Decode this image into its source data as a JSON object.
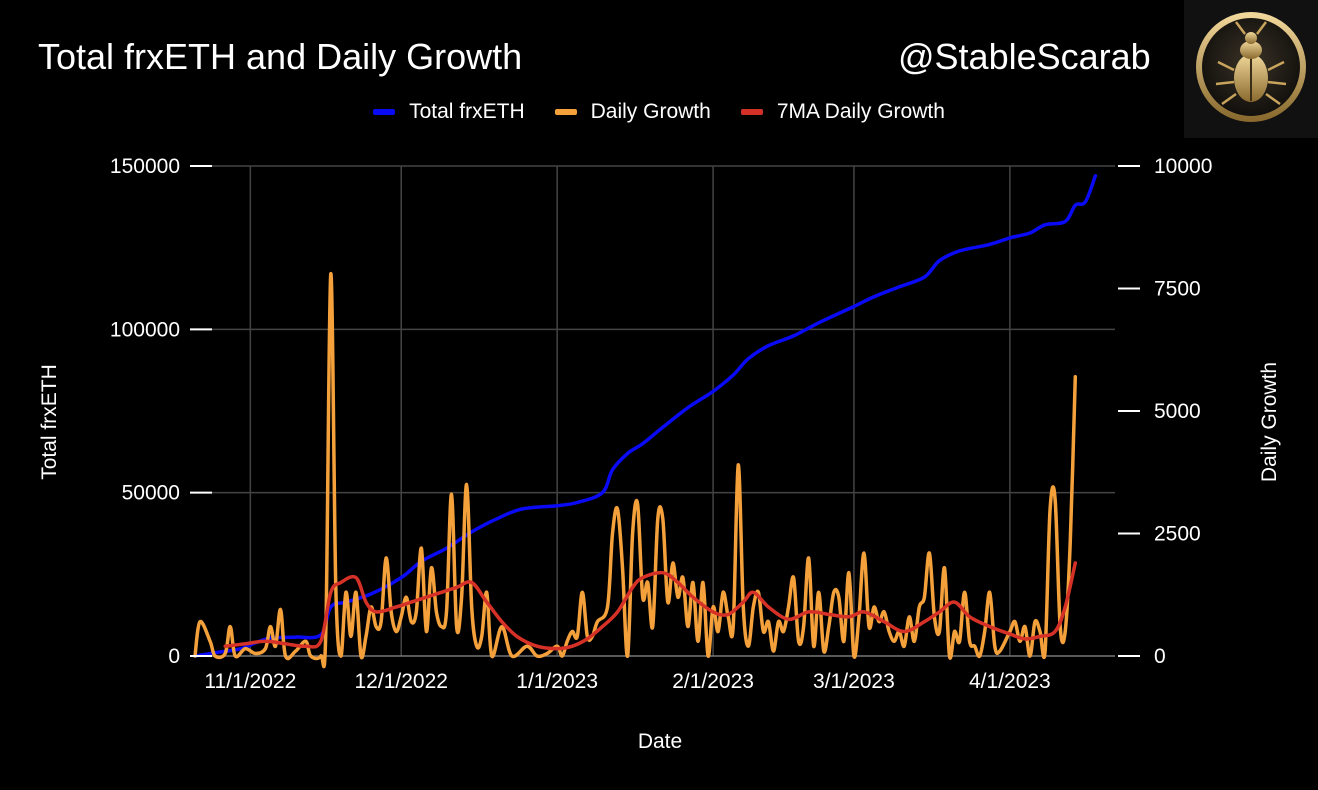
{
  "header": {
    "title": "Total frxETH and Daily Growth",
    "handle": "@StableScarab",
    "logo_icon": "scarab-beetle-logo"
  },
  "colors": {
    "background": "#000000",
    "total": "#0a0af5",
    "daily": "#f4a13c",
    "ma": "#d63127",
    "grid": "#444444",
    "logo_gold": "#c9a45c"
  },
  "chart_data": {
    "type": "line",
    "title": "Total frxETH and Daily Growth",
    "xlabel": "Date",
    "ylabel_left": "Total frxETH",
    "ylabel_right": "Daily Growth",
    "xlim": [
      "2022-10-21",
      "2023-04-10"
    ],
    "ylim_left": [
      0,
      150000
    ],
    "ylim_right": [
      0,
      10000
    ],
    "yticks_left": [
      0,
      50000,
      100000,
      150000
    ],
    "yticks_right": [
      0,
      2500,
      5000,
      7500,
      10000
    ],
    "xticks": [
      {
        "date": "2022-11-01",
        "label": "11/1/2022"
      },
      {
        "date": "2022-12-01",
        "label": "12/1/2022"
      },
      {
        "date": "2023-01-01",
        "label": "1/1/2023"
      },
      {
        "date": "2023-02-01",
        "label": "2/1/2023"
      },
      {
        "date": "2023-03-01",
        "label": "3/1/2023"
      },
      {
        "date": "2023-04-01",
        "label": "4/1/2023"
      }
    ],
    "grid": true,
    "legend_position": "top-center",
    "series": [
      {
        "name": "Total frxETH",
        "axis": "left",
        "color": "#0a0af5",
        "points": [
          [
            "2022-10-21",
            0
          ],
          [
            "2022-10-25",
            1000
          ],
          [
            "2022-10-30",
            2200
          ],
          [
            "2022-11-02",
            4000
          ],
          [
            "2022-11-05",
            5500
          ],
          [
            "2022-11-10",
            5800
          ],
          [
            "2022-11-15",
            6500
          ],
          [
            "2022-11-17",
            15000
          ],
          [
            "2022-11-20",
            16500
          ],
          [
            "2022-11-25",
            19000
          ],
          [
            "2022-12-01",
            24000
          ],
          [
            "2022-12-05",
            29000
          ],
          [
            "2022-12-10",
            33000
          ],
          [
            "2022-12-15",
            38000
          ],
          [
            "2022-12-20",
            42000
          ],
          [
            "2022-12-25",
            45000
          ],
          [
            "2023-01-01",
            46000
          ],
          [
            "2023-01-05",
            47000
          ],
          [
            "2023-01-10",
            50000
          ],
          [
            "2023-01-12",
            57000
          ],
          [
            "2023-01-15",
            62000
          ],
          [
            "2023-01-18",
            65000
          ],
          [
            "2023-01-22",
            70000
          ],
          [
            "2023-01-27",
            76000
          ],
          [
            "2023-02-01",
            81000
          ],
          [
            "2023-02-05",
            86000
          ],
          [
            "2023-02-08",
            91000
          ],
          [
            "2023-02-12",
            95000
          ],
          [
            "2023-02-17",
            98000
          ],
          [
            "2023-02-22",
            102000
          ],
          [
            "2023-03-01",
            107000
          ],
          [
            "2023-03-05",
            110000
          ],
          [
            "2023-03-10",
            113000
          ],
          [
            "2023-03-15",
            116000
          ],
          [
            "2023-03-18",
            121000
          ],
          [
            "2023-03-22",
            124000
          ],
          [
            "2023-03-28",
            126000
          ],
          [
            "2023-04-01",
            128000
          ],
          [
            "2023-04-05",
            129500
          ],
          [
            "2023-04-08",
            132000
          ],
          [
            "2023-04-12",
            133000
          ],
          [
            "2023-04-14",
            138000
          ],
          [
            "2023-04-16",
            139000
          ],
          [
            "2023-04-18",
            147000
          ]
        ]
      },
      {
        "name": "Daily Growth",
        "axis": "right",
        "color": "#f4a13c",
        "points": [
          [
            "2022-10-21",
            0
          ],
          [
            "2022-10-22",
            700
          ],
          [
            "2022-10-24",
            300
          ],
          [
            "2022-10-25",
            0
          ],
          [
            "2022-10-27",
            50
          ],
          [
            "2022-10-28",
            600
          ],
          [
            "2022-10-29",
            0
          ],
          [
            "2022-10-31",
            150
          ],
          [
            "2022-11-02",
            50
          ],
          [
            "2022-11-04",
            150
          ],
          [
            "2022-11-05",
            600
          ],
          [
            "2022-11-06",
            200
          ],
          [
            "2022-11-07",
            950
          ],
          [
            "2022-11-08",
            0
          ],
          [
            "2022-11-10",
            100
          ],
          [
            "2022-11-12",
            300
          ],
          [
            "2022-11-13",
            0
          ],
          [
            "2022-11-15",
            0
          ],
          [
            "2022-11-16",
            500
          ],
          [
            "2022-11-17",
            7800
          ],
          [
            "2022-11-18",
            1400
          ],
          [
            "2022-11-19",
            0
          ],
          [
            "2022-11-20",
            1300
          ],
          [
            "2022-11-21",
            400
          ],
          [
            "2022-11-22",
            1300
          ],
          [
            "2022-11-23",
            0
          ],
          [
            "2022-11-24",
            400
          ],
          [
            "2022-11-25",
            1000
          ],
          [
            "2022-11-26",
            600
          ],
          [
            "2022-11-27",
            700
          ],
          [
            "2022-11-28",
            2000
          ],
          [
            "2022-11-29",
            900
          ],
          [
            "2022-11-30",
            500
          ],
          [
            "2022-12-01",
            800
          ],
          [
            "2022-12-02",
            1200
          ],
          [
            "2022-12-03",
            700
          ],
          [
            "2022-12-04",
            900
          ],
          [
            "2022-12-05",
            2200
          ],
          [
            "2022-12-06",
            500
          ],
          [
            "2022-12-07",
            1800
          ],
          [
            "2022-12-08",
            900
          ],
          [
            "2022-12-09",
            600
          ],
          [
            "2022-12-10",
            900
          ],
          [
            "2022-12-11",
            3300
          ],
          [
            "2022-12-12",
            600
          ],
          [
            "2022-12-13",
            1200
          ],
          [
            "2022-12-14",
            3500
          ],
          [
            "2022-12-15",
            1000
          ],
          [
            "2022-12-16",
            200
          ],
          [
            "2022-12-17",
            400
          ],
          [
            "2022-12-18",
            1300
          ],
          [
            "2022-12-19",
            0
          ],
          [
            "2022-12-21",
            600
          ],
          [
            "2022-12-23",
            0
          ],
          [
            "2022-12-26",
            200
          ],
          [
            "2022-12-28",
            0
          ],
          [
            "2022-12-30",
            50
          ],
          [
            "2023-01-01",
            200
          ],
          [
            "2023-01-02",
            0
          ],
          [
            "2023-01-03",
            300
          ],
          [
            "2023-01-04",
            500
          ],
          [
            "2023-01-05",
            400
          ],
          [
            "2023-01-06",
            1300
          ],
          [
            "2023-01-07",
            400
          ],
          [
            "2023-01-08",
            400
          ],
          [
            "2023-01-09",
            700
          ],
          [
            "2023-01-11",
            1000
          ],
          [
            "2023-01-12",
            2500
          ],
          [
            "2023-01-13",
            3000
          ],
          [
            "2023-01-14",
            1800
          ],
          [
            "2023-01-15",
            0
          ],
          [
            "2023-01-16",
            2500
          ],
          [
            "2023-01-17",
            3100
          ],
          [
            "2023-01-18",
            1200
          ],
          [
            "2023-01-19",
            1500
          ],
          [
            "2023-01-20",
            600
          ],
          [
            "2023-01-21",
            2800
          ],
          [
            "2023-01-22",
            2800
          ],
          [
            "2023-01-23",
            1100
          ],
          [
            "2023-01-24",
            1900
          ],
          [
            "2023-01-25",
            1200
          ],
          [
            "2023-01-26",
            1600
          ],
          [
            "2023-01-27",
            600
          ],
          [
            "2023-01-28",
            1500
          ],
          [
            "2023-01-29",
            300
          ],
          [
            "2023-01-30",
            1500
          ],
          [
            "2023-01-31",
            0
          ],
          [
            "2023-02-01",
            1000
          ],
          [
            "2023-02-02",
            500
          ],
          [
            "2023-02-03",
            1300
          ],
          [
            "2023-02-04",
            800
          ],
          [
            "2023-02-05",
            600
          ],
          [
            "2023-02-06",
            3900
          ],
          [
            "2023-02-07",
            1000
          ],
          [
            "2023-02-08",
            200
          ],
          [
            "2023-02-09",
            1000
          ],
          [
            "2023-02-10",
            1300
          ],
          [
            "2023-02-11",
            500
          ],
          [
            "2023-02-12",
            700
          ],
          [
            "2023-02-13",
            100
          ],
          [
            "2023-02-14",
            700
          ],
          [
            "2023-02-15",
            500
          ],
          [
            "2023-02-16",
            1000
          ],
          [
            "2023-02-17",
            1600
          ],
          [
            "2023-02-18",
            300
          ],
          [
            "2023-02-19",
            600
          ],
          [
            "2023-02-20",
            2000
          ],
          [
            "2023-02-21",
            200
          ],
          [
            "2023-02-22",
            1300
          ],
          [
            "2023-02-23",
            100
          ],
          [
            "2023-02-24",
            600
          ],
          [
            "2023-02-25",
            1300
          ],
          [
            "2023-02-26",
            1200
          ],
          [
            "2023-02-27",
            300
          ],
          [
            "2023-02-28",
            1700
          ],
          [
            "2023-03-01",
            0
          ],
          [
            "2023-03-02",
            800
          ],
          [
            "2023-03-03",
            2100
          ],
          [
            "2023-03-04",
            600
          ],
          [
            "2023-03-05",
            1000
          ],
          [
            "2023-03-06",
            700
          ],
          [
            "2023-03-07",
            900
          ],
          [
            "2023-03-08",
            500
          ],
          [
            "2023-03-09",
            300
          ],
          [
            "2023-03-10",
            500
          ],
          [
            "2023-03-11",
            200
          ],
          [
            "2023-03-12",
            800
          ],
          [
            "2023-03-13",
            300
          ],
          [
            "2023-03-14",
            1000
          ],
          [
            "2023-03-15",
            1200
          ],
          [
            "2023-03-16",
            2100
          ],
          [
            "2023-03-17",
            800
          ],
          [
            "2023-03-18",
            500
          ],
          [
            "2023-03-19",
            1800
          ],
          [
            "2023-03-20",
            0
          ],
          [
            "2023-03-21",
            500
          ],
          [
            "2023-03-22",
            300
          ],
          [
            "2023-03-23",
            1300
          ],
          [
            "2023-03-24",
            300
          ],
          [
            "2023-03-25",
            200
          ],
          [
            "2023-03-26",
            0
          ],
          [
            "2023-03-27",
            500
          ],
          [
            "2023-03-28",
            1300
          ],
          [
            "2023-03-29",
            200
          ],
          [
            "2023-03-30",
            100
          ],
          [
            "2023-04-01",
            500
          ],
          [
            "2023-04-02",
            700
          ],
          [
            "2023-04-03",
            300
          ],
          [
            "2023-04-04",
            600
          ],
          [
            "2023-04-05",
            0
          ],
          [
            "2023-04-06",
            700
          ],
          [
            "2023-04-07",
            500
          ],
          [
            "2023-04-08",
            100
          ],
          [
            "2023-04-09",
            3000
          ],
          [
            "2023-04-10",
            3200
          ],
          [
            "2023-04-11",
            600
          ],
          [
            "2023-04-12",
            500
          ],
          [
            "2023-04-13",
            2300
          ],
          [
            "2023-04-14",
            5700
          ]
        ]
      },
      {
        "name": "7MA Daily Growth",
        "axis": "right",
        "color": "#d63127",
        "points": [
          [
            "2022-10-27",
            200
          ],
          [
            "2022-10-31",
            250
          ],
          [
            "2022-11-04",
            300
          ],
          [
            "2022-11-08",
            250
          ],
          [
            "2022-11-12",
            200
          ],
          [
            "2022-11-15",
            300
          ],
          [
            "2022-11-17",
            1300
          ],
          [
            "2022-11-19",
            1500
          ],
          [
            "2022-11-22",
            1600
          ],
          [
            "2022-11-24",
            1100
          ],
          [
            "2022-11-26",
            900
          ],
          [
            "2022-11-30",
            1000
          ],
          [
            "2022-12-03",
            1100
          ],
          [
            "2022-12-06",
            1200
          ],
          [
            "2022-12-09",
            1300
          ],
          [
            "2022-12-12",
            1400
          ],
          [
            "2022-12-15",
            1500
          ],
          [
            "2022-12-18",
            1100
          ],
          [
            "2022-12-21",
            700
          ],
          [
            "2022-12-24",
            400
          ],
          [
            "2022-12-28",
            200
          ],
          [
            "2023-01-01",
            150
          ],
          [
            "2023-01-04",
            200
          ],
          [
            "2023-01-07",
            350
          ],
          [
            "2023-01-10",
            600
          ],
          [
            "2023-01-13",
            900
          ],
          [
            "2023-01-16",
            1400
          ],
          [
            "2023-01-18",
            1600
          ],
          [
            "2023-01-22",
            1700
          ],
          [
            "2023-01-25",
            1500
          ],
          [
            "2023-01-28",
            1200
          ],
          [
            "2023-02-01",
            900
          ],
          [
            "2023-02-04",
            850
          ],
          [
            "2023-02-07",
            1100
          ],
          [
            "2023-02-09",
            1300
          ],
          [
            "2023-02-12",
            1000
          ],
          [
            "2023-02-16",
            750
          ],
          [
            "2023-02-20",
            900
          ],
          [
            "2023-02-24",
            850
          ],
          [
            "2023-02-28",
            800
          ],
          [
            "2023-03-03",
            900
          ],
          [
            "2023-03-07",
            700
          ],
          [
            "2023-03-11",
            500
          ],
          [
            "2023-03-15",
            700
          ],
          [
            "2023-03-18",
            900
          ],
          [
            "2023-03-21",
            1100
          ],
          [
            "2023-03-24",
            800
          ],
          [
            "2023-03-28",
            600
          ],
          [
            "2023-04-01",
            450
          ],
          [
            "2023-04-04",
            350
          ],
          [
            "2023-04-07",
            400
          ],
          [
            "2023-04-10",
            500
          ],
          [
            "2023-04-12",
            1000
          ],
          [
            "2023-04-14",
            1900
          ]
        ]
      }
    ]
  }
}
